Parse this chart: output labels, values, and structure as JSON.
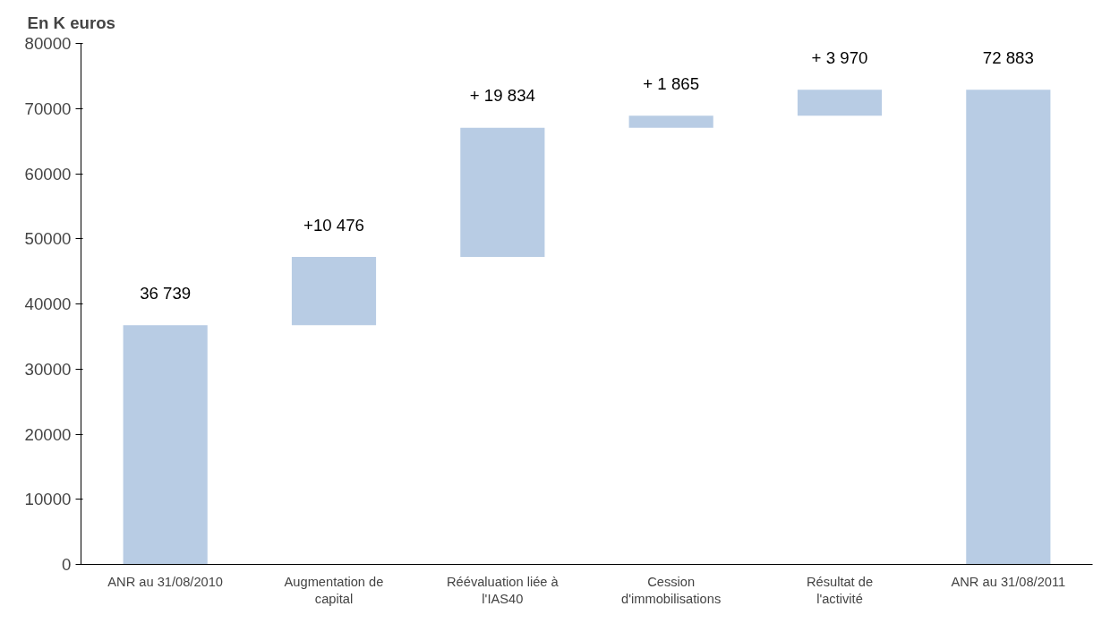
{
  "chart_data": {
    "type": "bar",
    "title": "En K euros",
    "categories": [
      "ANR au 31/08/2010",
      "Augmentation de capital",
      "Réévaluation liée à l'IAS40",
      "Cession d'immobilisations",
      "Résultat de l'activité",
      "ANR au 31/08/2011"
    ],
    "values": [
      36739,
      10476,
      19834,
      1865,
      3970,
      72883
    ],
    "base": [
      0,
      36739,
      47215,
      67049,
      68914,
      0
    ],
    "value_labels": [
      "36 739",
      "+10 476",
      "+ 19 834",
      "+ 1 865",
      "+ 3 970",
      "72 883"
    ],
    "color": "#b8cce4",
    "ylim": [
      0,
      80000
    ],
    "yticks": [
      0,
      10000,
      20000,
      30000,
      40000,
      50000,
      60000,
      70000,
      80000
    ],
    "grid": false
  }
}
